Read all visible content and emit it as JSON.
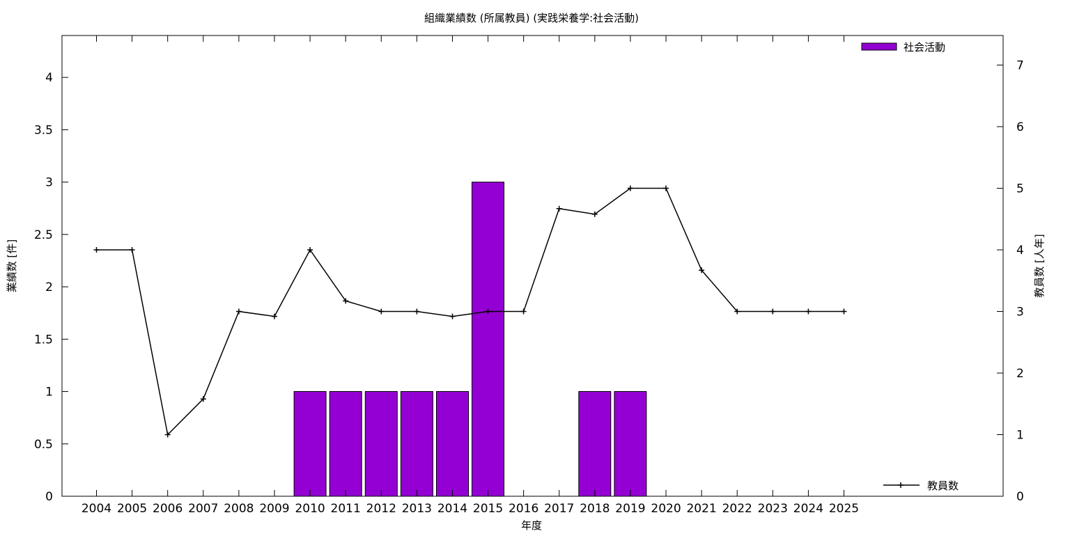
{
  "chart_data": {
    "type": "bar",
    "title": "組織業績数 (所属教員) (実践栄養学:社会活動)",
    "xlabel": "年度",
    "ylabel": "業績数 [件]",
    "y2label": "教員数 [人年]",
    "categories": [
      "2004",
      "2005",
      "2006",
      "2007",
      "2008",
      "2009",
      "2010",
      "2011",
      "2012",
      "2013",
      "2014",
      "2015",
      "2016",
      "2017",
      "2018",
      "2019",
      "2020",
      "2021",
      "2022",
      "2023",
      "2024",
      "2025"
    ],
    "ylim": [
      0,
      4.4
    ],
    "y2lim": [
      0,
      7.48
    ],
    "yticks": [
      "0",
      "0.5",
      "1",
      "1.5",
      "2",
      "2.5",
      "3",
      "3.5",
      "4"
    ],
    "y2ticks": [
      "0",
      "1",
      "2",
      "3",
      "4",
      "5",
      "6",
      "7"
    ],
    "series": [
      {
        "name": "社会活動",
        "type": "bar",
        "axis": "left",
        "color": "#9400d3",
        "values": [
          0,
          0,
          0,
          0,
          0,
          0,
          1,
          1,
          1,
          1,
          1,
          3,
          0,
          0,
          1,
          1,
          0,
          0,
          0,
          0,
          0,
          0
        ]
      },
      {
        "name": "教員数",
        "type": "line",
        "axis": "right",
        "color": "#000000",
        "values": [
          4,
          4,
          1,
          1.58,
          3,
          2.92,
          4,
          3.17,
          3,
          3,
          2.92,
          3,
          3,
          4.67,
          4.58,
          5,
          5,
          3.67,
          3,
          3,
          3,
          3
        ]
      }
    ],
    "grid": false,
    "legend": [
      "top-right",
      "bottom-right"
    ]
  }
}
